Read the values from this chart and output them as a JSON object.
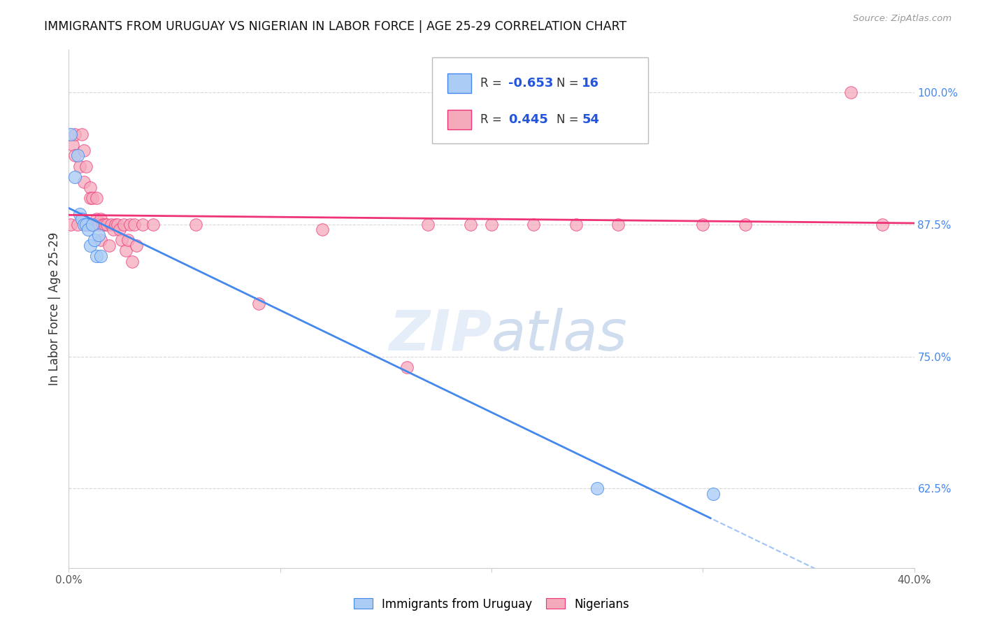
{
  "title": "IMMIGRANTS FROM URUGUAY VS NIGERIAN IN LABOR FORCE | AGE 25-29 CORRELATION CHART",
  "source": "Source: ZipAtlas.com",
  "ylabel": "In Labor Force | Age 25-29",
  "xmin": 0.0,
  "xmax": 0.4,
  "ymin": 0.55,
  "ymax": 1.04,
  "ytick_positions": [
    0.625,
    0.75,
    0.875,
    1.0
  ],
  "ytick_labels": [
    "62.5%",
    "75.0%",
    "87.5%",
    "100.0%"
  ],
  "grid_color": "#d8d8d8",
  "background_color": "#ffffff",
  "legend_R1": "-0.653",
  "legend_N1": "16",
  "legend_R2": "0.445",
  "legend_N2": "54",
  "uruguay_color": "#aaccf5",
  "nigerian_color": "#f5aabc",
  "line_uruguay_color": "#4488ee",
  "line_nigerian_color": "#ee3377",
  "right_tick_color": "#4488ee",
  "uruguay_points_x": [
    0.001,
    0.003,
    0.004,
    0.005,
    0.006,
    0.007,
    0.008,
    0.009,
    0.01,
    0.011,
    0.012,
    0.013,
    0.014,
    0.015,
    0.25,
    0.305
  ],
  "uruguay_points_y": [
    0.96,
    0.92,
    0.94,
    0.885,
    0.88,
    0.875,
    0.875,
    0.87,
    0.855,
    0.875,
    0.86,
    0.845,
    0.865,
    0.845,
    0.625,
    0.62
  ],
  "nigerian_points_x": [
    0.001,
    0.002,
    0.003,
    0.003,
    0.004,
    0.005,
    0.006,
    0.007,
    0.007,
    0.008,
    0.009,
    0.01,
    0.01,
    0.011,
    0.011,
    0.012,
    0.013,
    0.013,
    0.014,
    0.015,
    0.015,
    0.016,
    0.017,
    0.018,
    0.019,
    0.02,
    0.021,
    0.022,
    0.023,
    0.024,
    0.025,
    0.026,
    0.027,
    0.028,
    0.029,
    0.03,
    0.031,
    0.032,
    0.035,
    0.04,
    0.06,
    0.09,
    0.12,
    0.16,
    0.17,
    0.19,
    0.2,
    0.22,
    0.24,
    0.26,
    0.3,
    0.32,
    0.37,
    0.385
  ],
  "nigerian_points_y": [
    0.875,
    0.95,
    0.96,
    0.94,
    0.875,
    0.93,
    0.96,
    0.945,
    0.915,
    0.93,
    0.875,
    0.91,
    0.9,
    0.9,
    0.875,
    0.875,
    0.9,
    0.88,
    0.875,
    0.88,
    0.86,
    0.875,
    0.875,
    0.875,
    0.855,
    0.875,
    0.87,
    0.875,
    0.875,
    0.87,
    0.86,
    0.875,
    0.85,
    0.86,
    0.875,
    0.84,
    0.875,
    0.855,
    0.875,
    0.875,
    0.875,
    0.8,
    0.87,
    0.74,
    0.875,
    0.875,
    0.875,
    0.875,
    0.875,
    0.875,
    0.875,
    0.875,
    1.0,
    0.875
  ]
}
